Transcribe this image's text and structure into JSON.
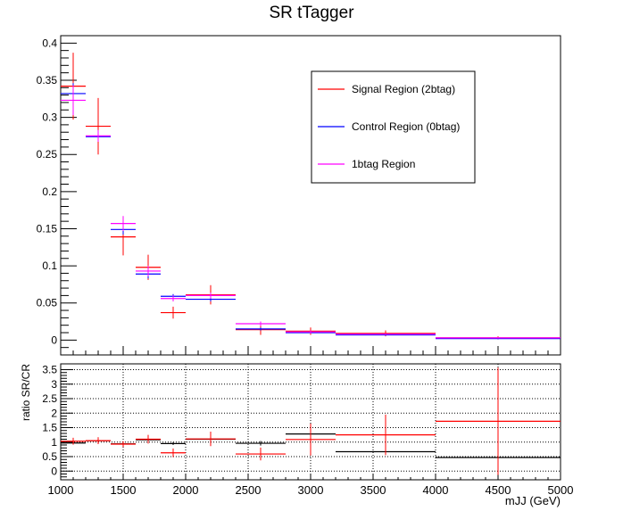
{
  "chart_data": [
    {
      "type": "errorbar",
      "title": "SR tTagger",
      "xlabel": "",
      "ylabel": "",
      "xlim": [
        1000,
        5000
      ],
      "ylim": [
        -0.02,
        0.41
      ],
      "yticks": [
        0,
        0.05,
        0.1,
        0.15,
        0.2,
        0.25,
        0.3,
        0.35,
        0.4
      ],
      "ytick_labels": [
        "0",
        "0.05",
        "0.1",
        "0.15",
        "0.2",
        "0.25",
        "0.3",
        "0.35",
        "0.4"
      ],
      "grid": false,
      "legend_position": "top-right",
      "bins": [
        [
          1000,
          1200
        ],
        [
          1200,
          1400
        ],
        [
          1400,
          1600
        ],
        [
          1600,
          1800
        ],
        [
          1800,
          2000
        ],
        [
          2000,
          2400
        ],
        [
          2400,
          2800
        ],
        [
          2800,
          3200
        ],
        [
          3200,
          4000
        ],
        [
          4000,
          5000
        ]
      ],
      "series": [
        {
          "name": "Signal Region (2btag)",
          "color": "#ff0000",
          "values": [
            0.342,
            0.288,
            0.139,
            0.098,
            0.037,
            0.061,
            0.014,
            0.012,
            0.009,
            0.003
          ],
          "errors": [
            0.045,
            0.038,
            0.025,
            0.017,
            0.008,
            0.013,
            0.007,
            0.005,
            0.004,
            0.002
          ]
        },
        {
          "name": "Control Region (0btag)",
          "color": "#0000ff",
          "values": [
            0.332,
            0.274,
            0.149,
            0.089,
            0.059,
            0.055,
            0.015,
            0.01,
            0.007,
            0.002
          ],
          "errors": [
            0.014,
            0.006,
            0.007,
            0.006,
            0.003,
            0.003,
            0.002,
            0.001,
            0.001,
            0.001
          ]
        },
        {
          "name": "1btag Region",
          "color": "#ff00ff",
          "values": [
            0.323,
            0.275,
            0.157,
            0.093,
            0.056,
            0.06,
            0.022,
            0.011,
            0.008,
            0.003
          ],
          "errors": [
            0.02,
            0.008,
            0.01,
            0.007,
            0.004,
            0.004,
            0.003,
            0.002,
            0.001,
            0.001
          ]
        }
      ]
    },
    {
      "type": "errorbar",
      "title": "",
      "xlabel": "mJJ (GeV)",
      "ylabel": "ratio SR/CR",
      "xlim": [
        1000,
        5000
      ],
      "ylim": [
        -0.3,
        3.7
      ],
      "xticks": [
        1000,
        1500,
        2000,
        2500,
        3000,
        3500,
        4000,
        4500,
        5000
      ],
      "xtick_labels": [
        "1000",
        "1500",
        "2000",
        "2500",
        "3000",
        "3500",
        "4000",
        "4500",
        "5000"
      ],
      "yticks": [
        0,
        0.5,
        1,
        1.5,
        2,
        2.5,
        3,
        3.5
      ],
      "ytick_labels": [
        "0",
        "0.5",
        "1",
        "1.5",
        "2",
        "2.5",
        "3",
        "3.5"
      ],
      "grid": true,
      "bins": [
        [
          1000,
          1200
        ],
        [
          1200,
          1400
        ],
        [
          1400,
          1600
        ],
        [
          1600,
          1800
        ],
        [
          1800,
          2000
        ],
        [
          2000,
          2400
        ],
        [
          2400,
          2800
        ],
        [
          2800,
          3200
        ],
        [
          3200,
          4000
        ],
        [
          4000,
          5000
        ]
      ],
      "series": [
        {
          "color": "#000000",
          "values": [
            0.97,
            1.05,
            0.94,
            1.08,
            0.95,
            1.1,
            0.96,
            1.28,
            0.67,
            0.47
          ],
          "errors": [
            0.05,
            0.04,
            0.06,
            0.05,
            0.05,
            0.05,
            0.08,
            0.15,
            0.1,
            0.1
          ]
        },
        {
          "color": "#ff0000",
          "values": [
            1.03,
            1.05,
            0.93,
            1.1,
            0.63,
            1.11,
            0.59,
            1.09,
            1.25,
            1.72
          ],
          "errors": [
            0.12,
            0.12,
            0.1,
            0.15,
            0.15,
            0.25,
            0.22,
            0.55,
            0.7,
            1.85
          ]
        }
      ]
    }
  ]
}
